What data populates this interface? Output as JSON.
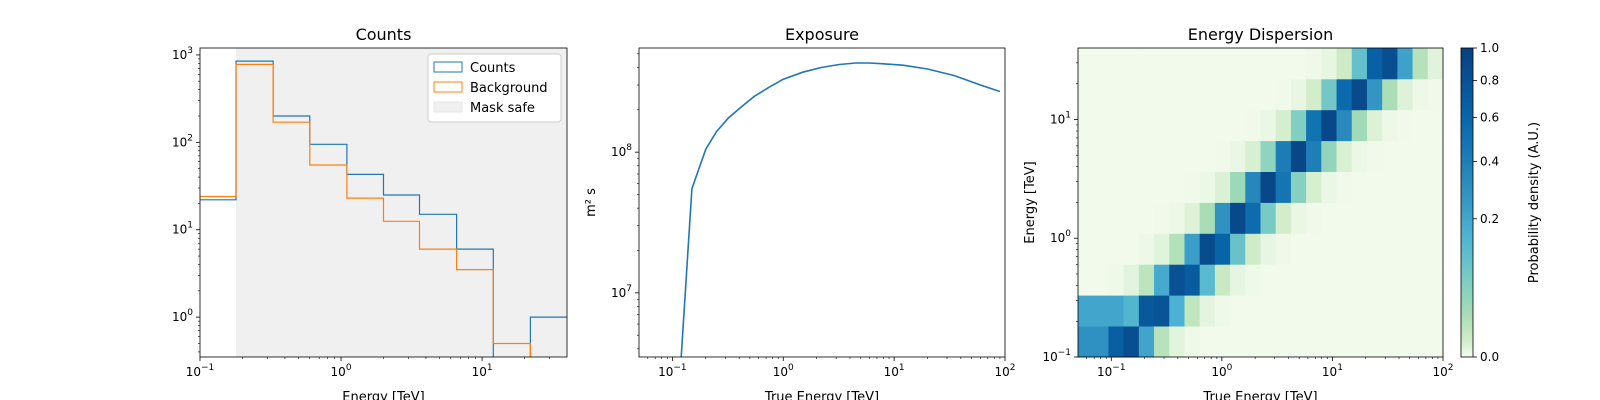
{
  "colors": {
    "counts": "#1f77b4",
    "background": "#ff7f0e",
    "mask": "#f0f0f0",
    "mask_edge": "#e6e6e6",
    "exposure": "#1f77b4",
    "cmap": [
      "#f7fcf0",
      "#e0f3db",
      "#ccebc5",
      "#a8ddb5",
      "#7bccc4",
      "#4eb3d3",
      "#2b8cbe",
      "#0868ac",
      "#084081"
    ]
  },
  "chart_data": [
    {
      "type": "line",
      "subtype": "step-histogram",
      "title": "Counts",
      "xlabel": "Energy [TeV]",
      "ylabel": "",
      "xscale": "log",
      "yscale": "log",
      "xlim": [
        0.1,
        40
      ],
      "ylim": [
        0.35,
        1200
      ],
      "grid": false,
      "legend_position": "top-right",
      "xticks": [
        {
          "v": 0.1,
          "b": "10",
          "e": "−1"
        },
        {
          "v": 1,
          "b": "10",
          "e": "0"
        },
        {
          "v": 10,
          "b": "10",
          "e": "1"
        }
      ],
      "yticks": [
        {
          "v": 1,
          "b": "10",
          "e": "0"
        },
        {
          "v": 10,
          "b": "10",
          "e": "1"
        },
        {
          "v": 100,
          "b": "10",
          "e": "2"
        },
        {
          "v": 1000,
          "b": "10",
          "e": "3"
        }
      ],
      "legend": {
        "counts": "Counts",
        "background": "Background",
        "mask": "Mask safe"
      },
      "mask_safe_range": [
        0.18,
        40
      ],
      "edges": [
        0.1,
        0.18,
        0.33,
        0.6,
        1.1,
        2.0,
        3.6,
        6.6,
        12,
        22,
        40
      ],
      "series": [
        {
          "name": "Counts",
          "values": [
            22,
            850,
            200,
            95,
            43,
            25,
            15,
            6,
            0.3,
            1
          ]
        },
        {
          "name": "Background",
          "values": [
            24,
            780,
            170,
            55,
            23,
            12.5,
            6,
            3.5,
            0.5,
            0.3
          ]
        }
      ]
    },
    {
      "type": "line",
      "title": "Exposure",
      "xlabel": "True Energy [TeV]",
      "ylabel": "m² s",
      "xscale": "log",
      "yscale": "log",
      "xlim": [
        0.05,
        100
      ],
      "ylim": [
        3500000.0,
        550000000.0
      ],
      "grid": false,
      "xticks": [
        {
          "v": 0.1,
          "b": "10",
          "e": "−1"
        },
        {
          "v": 1,
          "b": "10",
          "e": "0"
        },
        {
          "v": 10,
          "b": "10",
          "e": "1"
        },
        {
          "v": 100,
          "b": "10",
          "e": "2"
        }
      ],
      "yticks": [
        {
          "v": 10000000.0,
          "b": "10",
          "e": "7"
        },
        {
          "v": 100000000.0,
          "b": "10",
          "e": "8"
        }
      ],
      "series": [
        {
          "name": "",
          "x": [
            0.12,
            0.15,
            0.2,
            0.25,
            0.32,
            0.42,
            0.55,
            0.75,
            1.0,
            1.5,
            2.2,
            3.2,
            4.5,
            6,
            8,
            12,
            20,
            35,
            60,
            90
          ],
          "y": [
            3500000.0,
            55000000.0,
            105000000.0,
            140000000.0,
            175000000.0,
            210000000.0,
            250000000.0,
            290000000.0,
            330000000.0,
            370000000.0,
            400000000.0,
            420000000.0,
            430000000.0,
            430000000.0,
            425000000.0,
            415000000.0,
            390000000.0,
            350000000.0,
            300000000.0,
            270000000.0
          ]
        }
      ]
    },
    {
      "type": "heatmap",
      "title": "Energy Dispersion",
      "xlabel": "True Energy [TeV]",
      "ylabel": "Energy [TeV]",
      "xscale": "log",
      "yscale": "log",
      "xlim": [
        0.05,
        100
      ],
      "ylim": [
        0.1,
        40
      ],
      "xticks": [
        {
          "v": 0.1,
          "b": "10",
          "e": "−1"
        },
        {
          "v": 1,
          "b": "10",
          "e": "0"
        },
        {
          "v": 10,
          "b": "10",
          "e": "1"
        },
        {
          "v": 100,
          "b": "10",
          "e": "2"
        }
      ],
      "yticks": [
        {
          "v": 0.1,
          "b": "10",
          "e": "−1"
        },
        {
          "v": 1,
          "b": "10",
          "e": "0"
        },
        {
          "v": 10,
          "b": "10",
          "e": "1"
        }
      ],
      "colorbar": {
        "label": "Probability density (A.U.)",
        "range": [
          0,
          1
        ],
        "scale": "power",
        "ticks": [
          0.0,
          0.2,
          0.4,
          0.6,
          0.8,
          1.0
        ],
        "tick_labels": [
          "0.0",
          "0.2",
          "0.4",
          "0.6",
          "0.8",
          "1.0"
        ]
      },
      "diagonal_peak": 1.0,
      "diagonal_width_dex": 0.15,
      "n_true_bins": 24,
      "n_reco_bins": 10
    }
  ]
}
